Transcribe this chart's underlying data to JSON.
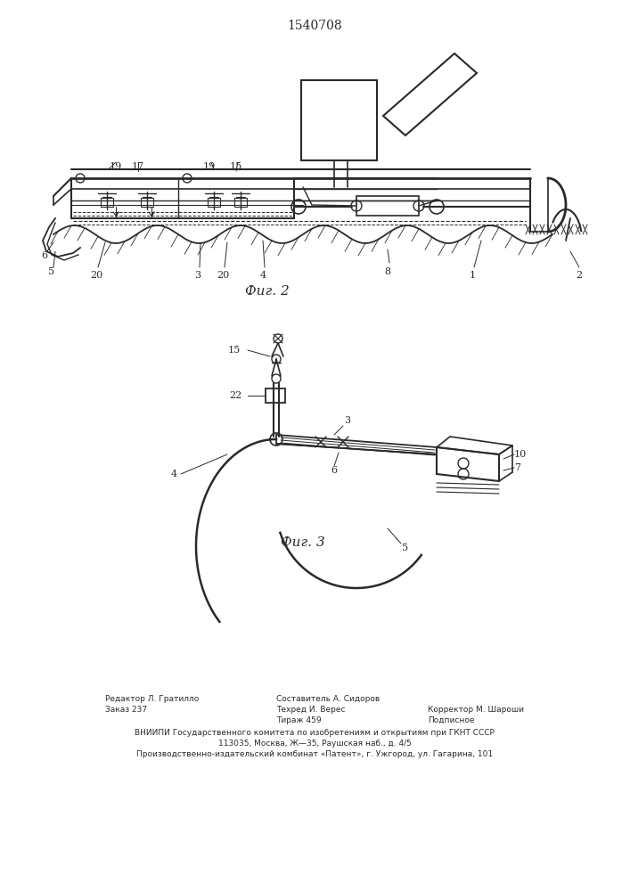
{
  "title": "1540708",
  "fig2_label": "Фиг. 2",
  "fig3_label": "Фиг. 3",
  "footer_col1_line1": "Редактор Л. Гратилло",
  "footer_col1_line2": "Заказ 237",
  "footer_col2_line1": "Составитель А. Сидоров",
  "footer_col2_line2": "Техред И. Верес",
  "footer_col2_line3": "Тираж 459",
  "footer_col3_line2": "Корректор М. Шароши",
  "footer_col3_line3": "Подписное",
  "footer_line4": "ВНИИПИ Государственного комитета по изобретениям и открытиям при ГКНТ СССР",
  "footer_line5": "113035, Москва, Ж—35, Раушская наб., д. 4/5",
  "footer_line6": "Производственно-издательский комбинат «Патент», г. Ужгород, ул. Гагарина, 101",
  "bg_color": "#ffffff",
  "line_color": "#2a2a2a"
}
